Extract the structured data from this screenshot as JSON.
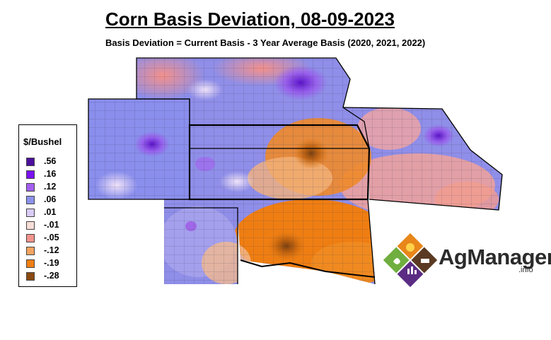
{
  "title": "Corn Basis Deviation, 08-09-2023",
  "subtitle": "Basis Deviation = Current Basis - 3 Year Average Basis (2020, 2021, 2022)",
  "legend": {
    "title": "$/Bushel",
    "items": [
      {
        "label": ".56",
        "color": "#4b0f9c"
      },
      {
        "label": ".16",
        "color": "#7a10f0"
      },
      {
        "label": ".12",
        "color": "#a35ef0"
      },
      {
        "label": ".06",
        "color": "#8c92ea"
      },
      {
        "label": ".01",
        "color": "#d9ccf6"
      },
      {
        "label": "-.01",
        "color": "#f6ddd6"
      },
      {
        "label": "-.05",
        "color": "#f2938c"
      },
      {
        "label": "-.12",
        "color": "#f4a460"
      },
      {
        "label": "-.19",
        "color": "#f07f12"
      },
      {
        "label": "-.28",
        "color": "#8a4a10"
      }
    ]
  },
  "logo": {
    "name": "AgManager",
    "suffix": ".info",
    "colors": {
      "orange": "#e8861a",
      "brown": "#5a3a22",
      "green": "#6fae3f",
      "purple": "#5b2c83"
    }
  }
}
